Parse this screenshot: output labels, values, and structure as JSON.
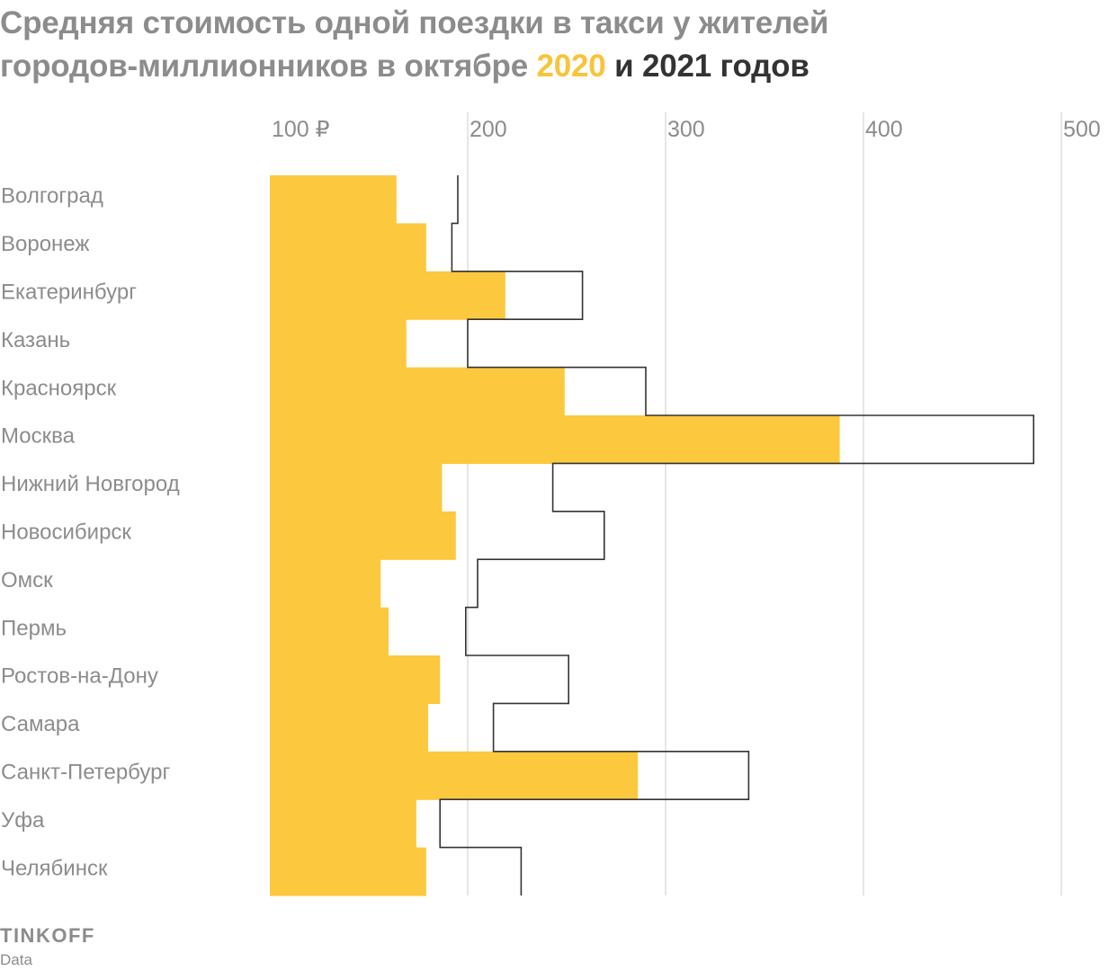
{
  "title": {
    "line1": "Средняя стоимость одной поездки в такси у жителей",
    "line2_prefix": "городов-миллионников в октябре ",
    "year_2020": "2020",
    "connector": " и ",
    "year_2021": "2021",
    "suffix": " годов"
  },
  "colors": {
    "bar_2020": "#fcc83d",
    "line_2021": "#333333",
    "grid": "#d9d9d9",
    "label": "#8c8c8c",
    "title_accent_2020": "#f9c43a"
  },
  "chart_data": {
    "type": "bar",
    "orientation": "horizontal",
    "x_ticks": [
      "100 ₽",
      "200",
      "300",
      "400",
      "500"
    ],
    "x_tick_values": [
      100,
      200,
      300,
      400,
      500
    ],
    "xlim": [
      100,
      500
    ],
    "grid": true,
    "categories": [
      "Волгоград",
      "Воронеж",
      "Екатеринбург",
      "Казань",
      "Красноярск",
      "Москва",
      "Нижний Новгород",
      "Новосибирск",
      "Омск",
      "Пермь",
      "Ростов-на-Дону",
      "Самара",
      "Санкт-Петербург",
      "Уфа",
      "Челябинск"
    ],
    "series": [
      {
        "name": "2020",
        "style": "filled",
        "values": [
          164,
          179,
          219,
          169,
          249,
          388,
          187,
          194,
          156,
          160,
          186,
          180,
          286,
          174,
          179
        ]
      },
      {
        "name": "2021",
        "style": "outline",
        "values": [
          195,
          192,
          258,
          200,
          290,
          486,
          243,
          269,
          205,
          199,
          251,
          213,
          342,
          186,
          227
        ]
      }
    ]
  },
  "footer": {
    "brand": "TINKOFF",
    "sub": "Data"
  }
}
